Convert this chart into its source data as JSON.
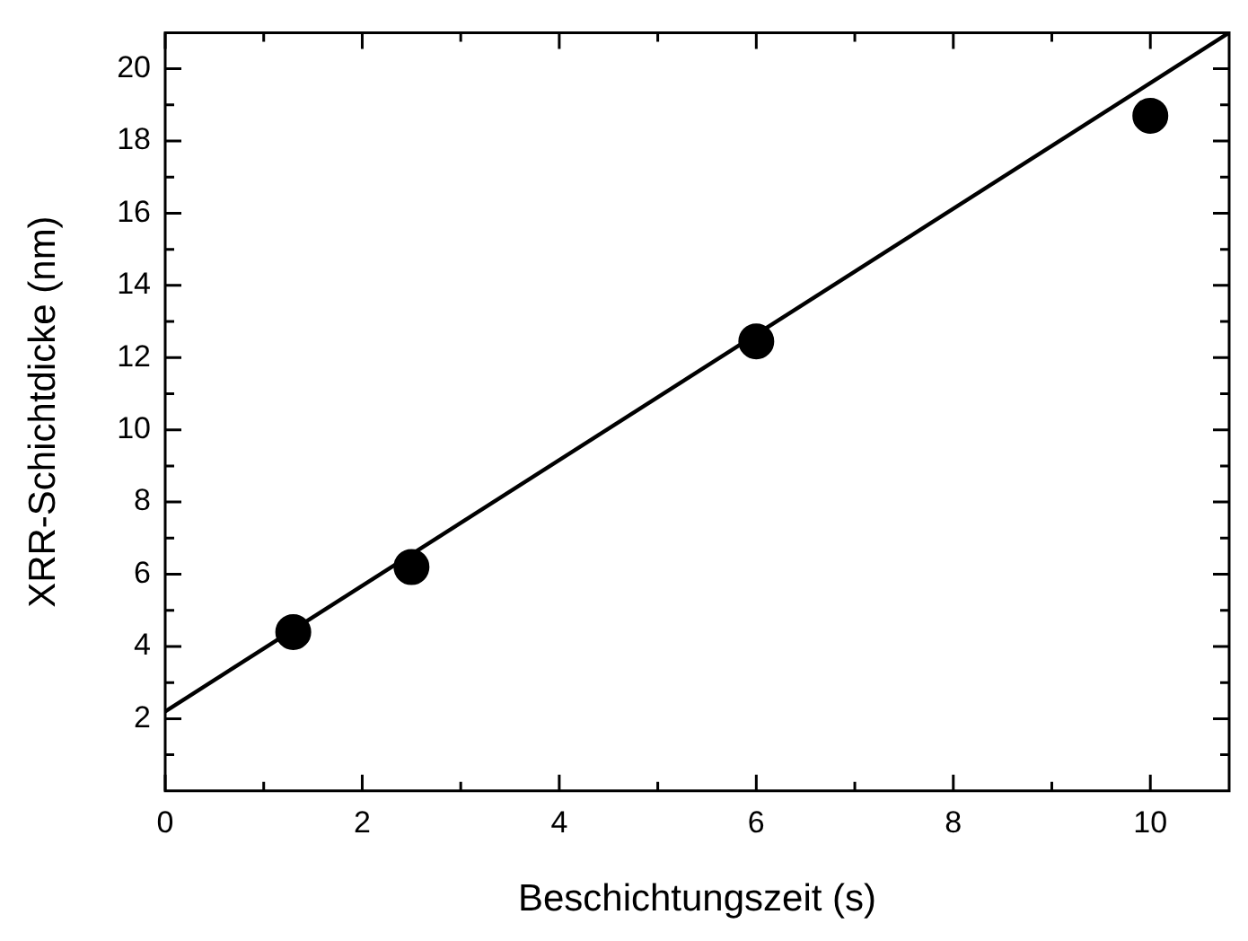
{
  "chart_data": {
    "type": "scatter",
    "xlabel": "Beschichtungszeit (s)",
    "ylabel": "XRR-Schichtdicke (nm)",
    "xlim": [
      0,
      10.8
    ],
    "ylim": [
      0,
      21
    ],
    "xticks": [
      0,
      {
        "value": 1,
        "label": null
      },
      2,
      {
        "value": 3,
        "label": null
      },
      4,
      {
        "value": 5,
        "label": null
      },
      6,
      {
        "value": 7,
        "label": null
      },
      8,
      {
        "value": 9,
        "label": null
      },
      10
    ],
    "yticks": [
      {
        "value": 1,
        "label": null
      },
      2,
      {
        "value": 3,
        "label": null
      },
      4,
      {
        "value": 5,
        "label": null
      },
      6,
      {
        "value": 7,
        "label": null
      },
      8,
      {
        "value": 9,
        "label": null
      },
      10,
      {
        "value": 11,
        "label": null
      },
      12,
      {
        "value": 13,
        "label": null
      },
      14,
      {
        "value": 15,
        "label": null
      },
      16,
      {
        "value": 17,
        "label": null
      },
      18,
      {
        "value": 19,
        "label": null
      },
      20
    ],
    "grid": false,
    "legend": false,
    "marker": "circle",
    "series": [
      {
        "color": "#000000",
        "x": [
          1.3,
          2.5,
          6,
          10
        ],
        "values": [
          4.4,
          6.2,
          12.45,
          18.7
        ]
      },
      {
        "type": "line",
        "color": "#000000",
        "marker": "none",
        "line_style": "solid",
        "x": [
          0,
          10.8
        ],
        "values": [
          2.2,
          21
        ]
      }
    ]
  }
}
